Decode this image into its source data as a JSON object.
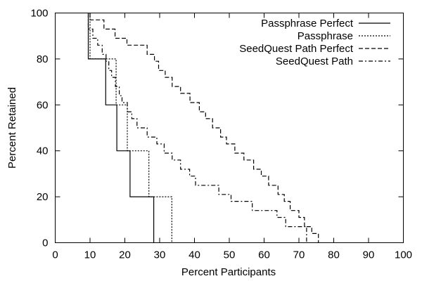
{
  "chart_data": {
    "type": "line",
    "title": "",
    "xlabel": "Percent Participants",
    "ylabel": "Percent Retained",
    "xlim": [
      0,
      100
    ],
    "ylim": [
      0,
      100
    ],
    "x_ticks": [
      0,
      10,
      20,
      30,
      40,
      50,
      60,
      70,
      80,
      90,
      100
    ],
    "y_ticks": [
      0,
      20,
      40,
      60,
      80,
      100
    ],
    "grid": false,
    "legend_position": "top-right",
    "series": [
      {
        "name": "Passphrase Perfect",
        "line_style": "solid",
        "step_points": [
          [
            9.5,
            100
          ],
          [
            9.5,
            80
          ],
          [
            14.5,
            80
          ],
          [
            14.5,
            60
          ],
          [
            17.7,
            60
          ],
          [
            17.7,
            40
          ],
          [
            21.5,
            40
          ],
          [
            21.5,
            20
          ],
          [
            28.3,
            20
          ],
          [
            28.3,
            0
          ]
        ]
      },
      {
        "name": "Passphrase",
        "line_style": "dotted",
        "step_points": [
          [
            10,
            100
          ],
          [
            10,
            80
          ],
          [
            17.5,
            80
          ],
          [
            17.5,
            60
          ],
          [
            20.7,
            60
          ],
          [
            20.7,
            40
          ],
          [
            26.9,
            40
          ],
          [
            26.9,
            20
          ],
          [
            33.5,
            20
          ],
          [
            33.5,
            0
          ]
        ]
      },
      {
        "name": "SeedQuest Path Perfect",
        "line_style": "dashed",
        "step_points": [
          [
            10,
            100
          ],
          [
            10,
            97
          ],
          [
            14,
            97
          ],
          [
            14,
            93
          ],
          [
            17.2,
            93
          ],
          [
            17.2,
            89
          ],
          [
            20.6,
            89
          ],
          [
            20.6,
            86
          ],
          [
            26.4,
            86
          ],
          [
            26.4,
            82
          ],
          [
            28.5,
            82
          ],
          [
            28.5,
            79
          ],
          [
            29.7,
            79
          ],
          [
            29.7,
            75
          ],
          [
            31.6,
            75
          ],
          [
            31.6,
            72
          ],
          [
            33.6,
            72
          ],
          [
            33.6,
            68
          ],
          [
            36,
            68
          ],
          [
            36,
            65
          ],
          [
            38.7,
            65
          ],
          [
            38.7,
            61
          ],
          [
            41.4,
            61
          ],
          [
            41.4,
            57
          ],
          [
            43.2,
            57
          ],
          [
            43.2,
            54
          ],
          [
            45.2,
            54
          ],
          [
            45.2,
            50
          ],
          [
            47.5,
            50
          ],
          [
            47.5,
            46
          ],
          [
            49.2,
            46
          ],
          [
            49.2,
            43
          ],
          [
            51.6,
            43
          ],
          [
            51.6,
            39
          ],
          [
            54.2,
            39
          ],
          [
            54.2,
            36
          ],
          [
            57,
            36
          ],
          [
            57,
            32
          ],
          [
            59.2,
            32
          ],
          [
            59.2,
            29
          ],
          [
            61.3,
            29
          ],
          [
            61.3,
            25
          ],
          [
            64,
            25
          ],
          [
            64,
            21
          ],
          [
            65.8,
            21
          ],
          [
            65.8,
            18
          ],
          [
            67.5,
            18
          ],
          [
            67.5,
            14
          ],
          [
            70,
            14
          ],
          [
            70,
            11
          ],
          [
            71.6,
            11
          ],
          [
            71.6,
            7
          ],
          [
            73.7,
            7
          ],
          [
            73.7,
            4
          ],
          [
            75.6,
            4
          ],
          [
            75.6,
            0
          ]
        ]
      },
      {
        "name": "SeedQuest Path",
        "line_style": "dash-dot",
        "step_points": [
          [
            9.5,
            100
          ],
          [
            9.5,
            93
          ],
          [
            10.8,
            93
          ],
          [
            10.8,
            89
          ],
          [
            12.2,
            89
          ],
          [
            12.2,
            86
          ],
          [
            13.5,
            86
          ],
          [
            13.5,
            82
          ],
          [
            14.6,
            82
          ],
          [
            14.6,
            79
          ],
          [
            15.4,
            79
          ],
          [
            15.4,
            75
          ],
          [
            16.2,
            75
          ],
          [
            16.2,
            72
          ],
          [
            17.3,
            72
          ],
          [
            17.3,
            68
          ],
          [
            18.4,
            68
          ],
          [
            18.4,
            64
          ],
          [
            19.2,
            64
          ],
          [
            19.2,
            61
          ],
          [
            20.7,
            61
          ],
          [
            20.7,
            57
          ],
          [
            22,
            57
          ],
          [
            22,
            54
          ],
          [
            23.5,
            54
          ],
          [
            23.5,
            50
          ],
          [
            26.4,
            50
          ],
          [
            26.4,
            46
          ],
          [
            29.2,
            46
          ],
          [
            29.2,
            43
          ],
          [
            31.3,
            43
          ],
          [
            31.3,
            39
          ],
          [
            33.6,
            39
          ],
          [
            33.6,
            36
          ],
          [
            36,
            36
          ],
          [
            36,
            32
          ],
          [
            38.6,
            32
          ],
          [
            38.6,
            29
          ],
          [
            40.3,
            29
          ],
          [
            40.3,
            25
          ],
          [
            47,
            25
          ],
          [
            47,
            21
          ],
          [
            50.5,
            21
          ],
          [
            50.5,
            18
          ],
          [
            56.6,
            18
          ],
          [
            56.6,
            14
          ],
          [
            63.7,
            14
          ],
          [
            63.7,
            11
          ],
          [
            66.2,
            11
          ],
          [
            66.2,
            7
          ],
          [
            72.2,
            7
          ],
          [
            72.2,
            0
          ]
        ]
      }
    ]
  }
}
